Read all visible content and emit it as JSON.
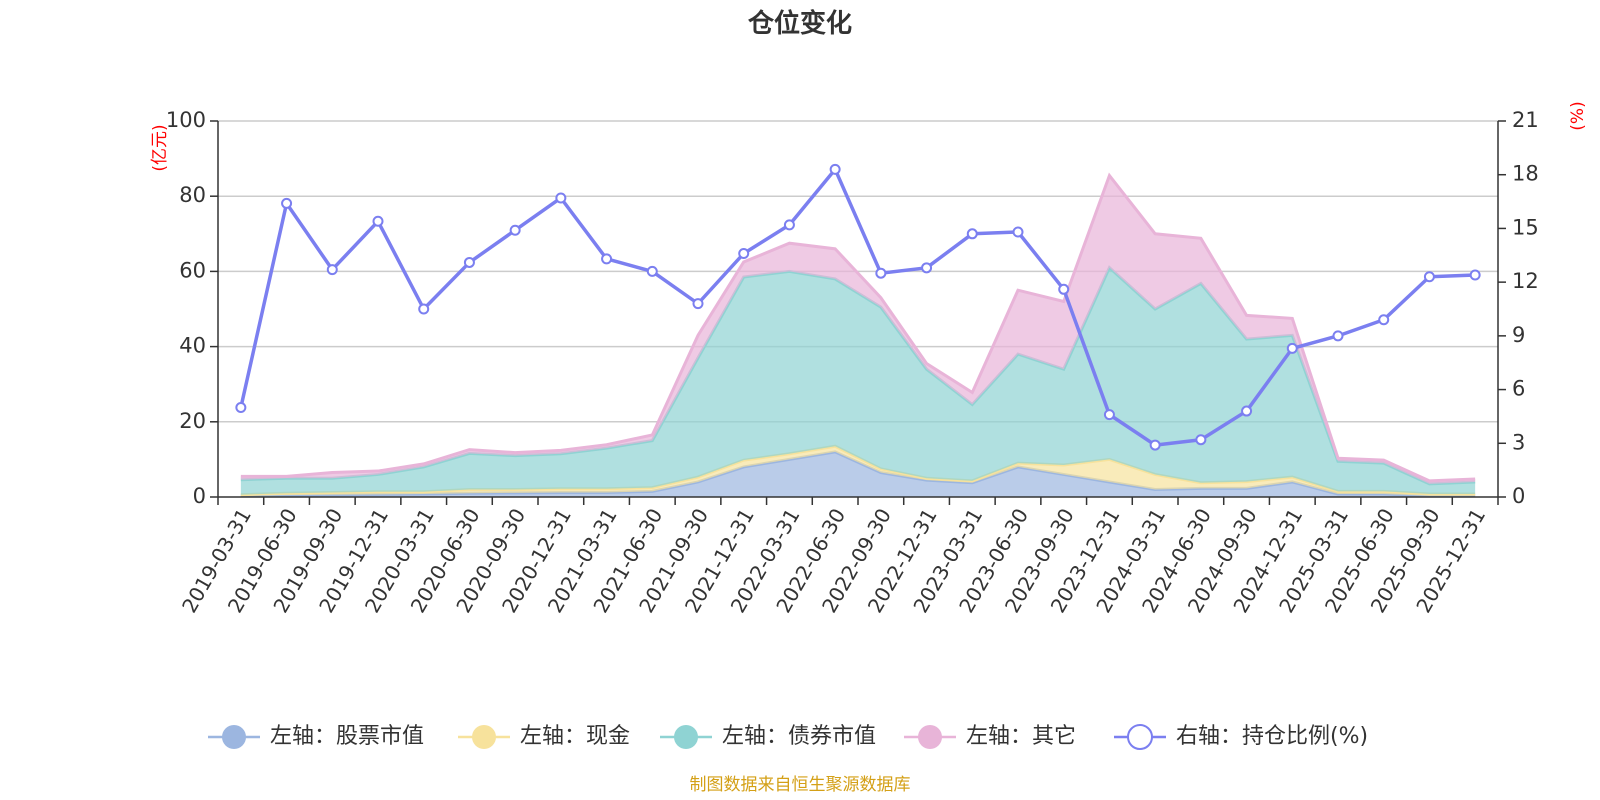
{
  "chart_data": {
    "type": "area",
    "title": "仓位变化",
    "source": "制图数据来自恒生聚源数据库",
    "left_axis": {
      "unit": "(亿元)",
      "min": 0,
      "max": 100,
      "ticks": [
        "0",
        "20",
        "40",
        "60",
        "80",
        "100"
      ]
    },
    "right_axis": {
      "unit": "(%)",
      "min": 0,
      "max": 21,
      "ticks": [
        "0",
        "3",
        "6",
        "9",
        "12",
        "15",
        "18",
        "21"
      ]
    },
    "categories": [
      "2019-03-31",
      "2019-06-30",
      "2019-09-30",
      "2019-12-31",
      "2020-03-31",
      "2020-06-30",
      "2020-09-30",
      "2020-12-31",
      "2021-03-31",
      "2021-06-30",
      "2021-09-30",
      "2021-12-31",
      "2022-03-31",
      "2022-06-30",
      "2022-09-30",
      "2022-12-31",
      "2023-03-31",
      "2023-06-30",
      "2023-09-30",
      "2023-12-31",
      "2024-03-31",
      "2024-06-30",
      "2024-09-30",
      "2024-12-31",
      "2025-03-31",
      "2025-06-30",
      "2025-09-30",
      "2025-12-31"
    ],
    "series": [
      {
        "name": "左轴：股票市值",
        "axis": "left",
        "color": "#9cb6e0",
        "values": [
          0.3,
          0.5,
          0.6,
          0.7,
          0.8,
          1.0,
          1.1,
          1.2,
          1.2,
          1.5,
          4.0,
          8.0,
          10.0,
          12.0,
          6.5,
          4.5,
          3.8,
          8.0,
          6.0,
          4.0,
          2.0,
          2.3,
          2.3,
          4.0,
          0.8,
          0.8,
          0.3,
          0.3
        ]
      },
      {
        "name": "左轴：现金",
        "axis": "left",
        "color": "#f7e29c",
        "values": [
          0.3,
          0.5,
          0.6,
          0.7,
          0.6,
          1.0,
          0.9,
          1.0,
          1.0,
          1.0,
          1.3,
          1.8,
          1.5,
          1.5,
          1.0,
          0.5,
          0.5,
          1.0,
          2.5,
          6.0,
          4.0,
          1.5,
          1.8,
          1.3,
          0.7,
          0.7,
          0.5,
          0.5
        ]
      },
      {
        "name": "左轴：债券市值",
        "axis": "left",
        "color": "#8fd3d3",
        "values": [
          4.0,
          4.0,
          3.8,
          4.6,
          6.6,
          9.6,
          9.0,
          9.3,
          10.8,
          12.5,
          31.7,
          48.7,
          48.5,
          44.5,
          43.0,
          29.0,
          20.3,
          29.0,
          25.5,
          51.0,
          44.0,
          53.0,
          37.9,
          37.7,
          8.0,
          7.5,
          2.7,
          3.2
        ]
      },
      {
        "name": "左轴：其它",
        "axis": "left",
        "color": "#e8b4d8",
        "values": [
          0.9,
          0.5,
          1.5,
          0.9,
          0.8,
          1.0,
          0.8,
          0.9,
          0.9,
          1.5,
          6.0,
          4.0,
          7.5,
          8.0,
          2.5,
          1.5,
          3.2,
          17.0,
          18.0,
          24.5,
          20.0,
          12.0,
          6.3,
          4.5,
          0.8,
          0.8,
          0.8,
          0.8
        ]
      },
      {
        "name": "右轴：持仓比例(%)",
        "axis": "right",
        "color": "#7b7ff0",
        "values": [
          5.0,
          16.4,
          12.7,
          15.4,
          10.5,
          13.1,
          14.9,
          16.7,
          13.3,
          12.6,
          10.8,
          13.6,
          15.2,
          18.3,
          12.5,
          12.8,
          14.7,
          14.8,
          11.6,
          4.6,
          2.9,
          3.2,
          4.8,
          8.3,
          9.0,
          9.9,
          12.3,
          12.4
        ]
      }
    ]
  }
}
